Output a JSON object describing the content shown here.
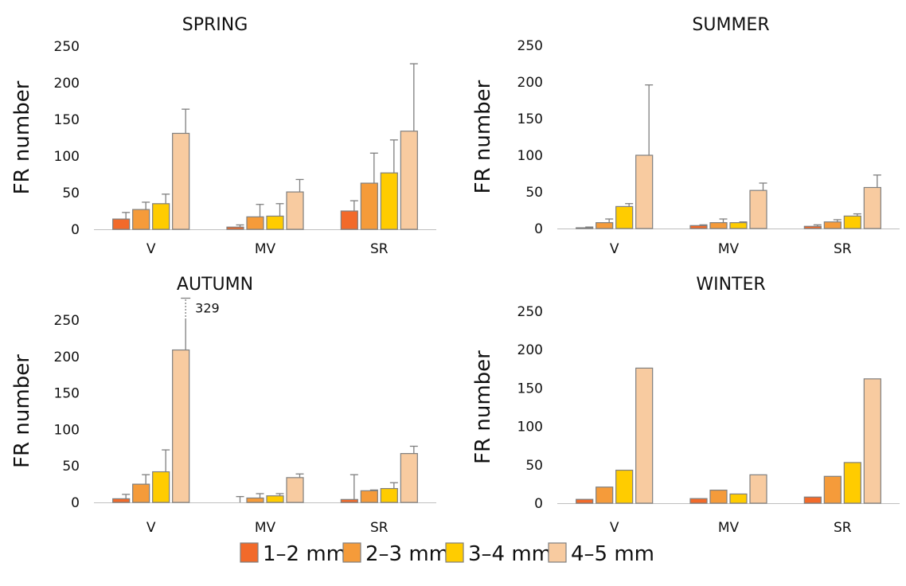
{
  "chart_data": [
    {
      "type": "bar",
      "title": "SPRING",
      "ylabel": "FR number",
      "ylim": [
        0,
        250
      ],
      "yticks": [
        "0",
        "50",
        "100",
        "150",
        "200",
        "250"
      ],
      "categories": [
        "V",
        "MV",
        "SR"
      ],
      "series": [
        {
          "name": "1–2 mm",
          "values": [
            14,
            3,
            25
          ],
          "errors": [
            9,
            3,
            14
          ]
        },
        {
          "name": "2–3 mm",
          "values": [
            27,
            17,
            63
          ],
          "errors": [
            10,
            17,
            41
          ]
        },
        {
          "name": "3–4 mm",
          "values": [
            35,
            18,
            77
          ],
          "errors": [
            13,
            17,
            45
          ]
        },
        {
          "name": "4–5 mm",
          "values": [
            131,
            51,
            134
          ],
          "errors": [
            33,
            17,
            92
          ]
        }
      ]
    },
    {
      "type": "bar",
      "title": "SUMMER",
      "ylabel": "FR number",
      "ylim": [
        0,
        250
      ],
      "yticks": [
        "0",
        "50",
        "100",
        "150",
        "200",
        "250"
      ],
      "categories": [
        "V",
        "MV",
        "SR"
      ],
      "series": [
        {
          "name": "1–2 mm",
          "values": [
            1,
            4,
            3
          ],
          "errors": [
            1,
            1,
            2
          ]
        },
        {
          "name": "2–3 mm",
          "values": [
            8,
            8,
            9
          ],
          "errors": [
            5,
            5,
            3
          ]
        },
        {
          "name": "3–4 mm",
          "values": [
            30,
            8,
            17
          ],
          "errors": [
            4,
            1,
            3
          ]
        },
        {
          "name": "4–5 mm",
          "values": [
            100,
            52,
            56
          ],
          "errors": [
            96,
            10,
            17
          ]
        }
      ]
    },
    {
      "type": "bar",
      "title": "AUTUMN",
      "ylabel": "FR number",
      "ylim": [
        0,
        250
      ],
      "yticks": [
        "0",
        "50",
        "100",
        "150",
        "200",
        "250"
      ],
      "categories": [
        "V",
        "MV",
        "SR"
      ],
      "annotation": {
        "text": "329",
        "series": 3,
        "category": 0,
        "value": 329
      },
      "series": [
        {
          "name": "1–2 mm",
          "values": [
            5,
            0,
            4
          ],
          "errors": [
            6,
            8,
            34
          ]
        },
        {
          "name": "2–3 mm",
          "values": [
            25,
            6,
            16
          ],
          "errors": [
            13,
            6,
            1
          ]
        },
        {
          "name": "3–4 mm",
          "values": [
            42,
            9,
            19
          ],
          "errors": [
            30,
            3,
            8
          ]
        },
        {
          "name": "4–5 mm",
          "values": [
            209,
            34,
            67
          ],
          "errors": [
            120,
            5,
            10
          ]
        }
      ]
    },
    {
      "type": "bar",
      "title": "WINTER",
      "ylabel": "FR number",
      "ylim": [
        0,
        250
      ],
      "yticks": [
        "0",
        "50",
        "100",
        "150",
        "200",
        "250"
      ],
      "categories": [
        "V",
        "MV",
        "SR"
      ],
      "series": [
        {
          "name": "1–2 mm",
          "values": [
            5,
            6,
            8
          ],
          "errors": [
            0,
            0,
            0
          ]
        },
        {
          "name": "2–3 mm",
          "values": [
            21,
            17,
            35
          ],
          "errors": [
            0,
            0,
            0
          ]
        },
        {
          "name": "3–4 mm",
          "values": [
            43,
            12,
            53
          ],
          "errors": [
            0,
            0,
            0
          ]
        },
        {
          "name": "4–5 mm",
          "values": [
            176,
            37,
            162
          ],
          "errors": [
            0,
            0,
            0
          ]
        }
      ]
    }
  ],
  "legend": {
    "placement": "bottom-center",
    "items": [
      {
        "label": "1–2 mm",
        "color": "#f26a2a"
      },
      {
        "label": "2–3 mm",
        "color": "#f59b3a"
      },
      {
        "label": "3–4 mm",
        "color": "#ffcc00"
      },
      {
        "label": "4–5 mm",
        "color": "#f8cba0"
      }
    ]
  }
}
